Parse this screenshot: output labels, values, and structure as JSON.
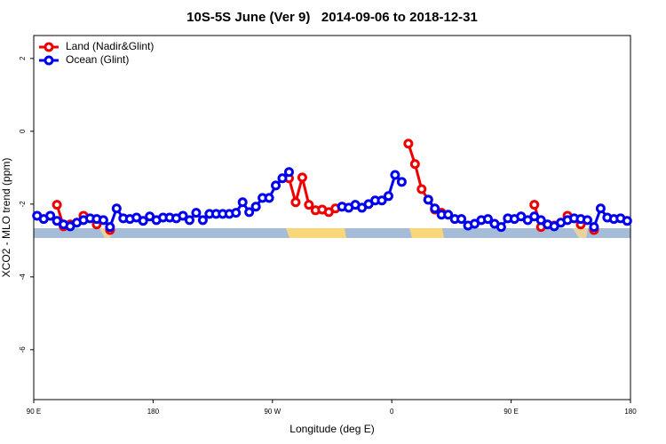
{
  "chart_data": {
    "type": "line",
    "title": "10S-5S June (Ver 9)   2014-09-06 to 2018-12-31",
    "x_label": "Longitude (deg E)",
    "y_label": "XCO2 - MLO trend (ppm)",
    "xlim": [
      90,
      540
    ],
    "ylim": [
      -7.37,
      2.63
    ],
    "xticks": [
      {
        "value": 90,
        "label": "90 E"
      },
      180,
      {
        "value": 270,
        "label": "90 W"
      },
      {
        "value": 360,
        "label": "0"
      },
      {
        "value": 450,
        "label": "90 E"
      },
      {
        "value": 540,
        "label": "180"
      }
    ],
    "yticks": [
      2,
      0,
      -2,
      -4,
      -6
    ],
    "legend": "top-left",
    "x": [
      92.5,
      97.5,
      102.5,
      107.5,
      112.5,
      117.5,
      122.5,
      127.5,
      132.5,
      137.5,
      142.5,
      147.5,
      152.5,
      157.5,
      162.5,
      167.5,
      172.5,
      177.5,
      182.5,
      187.5,
      192.5,
      197.5,
      202.5,
      207.5,
      212.5,
      217.5,
      222.5,
      227.5,
      232.5,
      237.5,
      242.5,
      247.5,
      252.5,
      257.5,
      262.5,
      267.5,
      272.5,
      277.5,
      282.5,
      287.5,
      292.5,
      297.5,
      302.5,
      307.5,
      312.5,
      317.5,
      322.5,
      327.5,
      332.5,
      337.5,
      342.5,
      347.5,
      352.5,
      357.5,
      362.5,
      367.5,
      372.5,
      377.5,
      382.5,
      387.5,
      392.5,
      397.5,
      402.5,
      407.5,
      412.5,
      417.5,
      422.5,
      427.5,
      432.5,
      437.5,
      442.5,
      447.5,
      452.5,
      457.5,
      462.5,
      467.5,
      472.5,
      477.5,
      482.5,
      487.5,
      492.5,
      497.5,
      502.5,
      507.5,
      512.5,
      517.5,
      522.5,
      527.5,
      532.5,
      537.5
    ],
    "series": [
      {
        "name": "Land (Nadir&Glint)",
        "color": "#ee0000",
        "values": [
          null,
          null,
          null,
          -2.02,
          -2.61,
          -2.56,
          null,
          -2.32,
          null,
          -2.56,
          null,
          -2.71,
          null,
          null,
          null,
          null,
          null,
          null,
          null,
          null,
          null,
          null,
          null,
          null,
          null,
          null,
          null,
          null,
          null,
          null,
          null,
          null,
          null,
          null,
          null,
          null,
          null,
          null,
          -1.29,
          -1.95,
          -1.27,
          -2.02,
          -2.17,
          -2.15,
          -2.22,
          -2.12,
          -2.07,
          null,
          null,
          null,
          null,
          null,
          null,
          null,
          null,
          null,
          -0.34,
          -0.9,
          -1.59,
          -1.88,
          -2.15,
          -2.24,
          null,
          null,
          null,
          null,
          null,
          null,
          null,
          null,
          null,
          null,
          null,
          null,
          null,
          -2.02,
          -2.63,
          null,
          -2.59,
          null,
          -2.32,
          null,
          -2.56,
          null,
          -2.71,
          null,
          null,
          null,
          null,
          null
        ]
      },
      {
        "name": "Ocean (Glint)",
        "color": "#0000ee",
        "values": [
          -2.32,
          -2.41,
          -2.32,
          -2.46,
          -2.56,
          -2.61,
          -2.51,
          -2.44,
          -2.39,
          -2.41,
          -2.44,
          -2.63,
          -2.12,
          -2.39,
          -2.41,
          -2.37,
          -2.46,
          -2.34,
          -2.44,
          -2.37,
          -2.37,
          -2.39,
          -2.32,
          -2.44,
          -2.24,
          -2.44,
          -2.27,
          -2.27,
          -2.27,
          -2.27,
          -2.24,
          -1.95,
          -2.22,
          -2.07,
          -1.83,
          -1.83,
          -1.49,
          -1.29,
          -1.12,
          null,
          null,
          null,
          null,
          null,
          null,
          null,
          -2.07,
          -2.1,
          -2.02,
          -2.1,
          -2.0,
          -1.9,
          -1.9,
          -1.78,
          -1.2,
          -1.39,
          null,
          null,
          null,
          -1.88,
          -2.12,
          -2.29,
          -2.29,
          -2.41,
          -2.41,
          -2.59,
          -2.54,
          -2.44,
          -2.41,
          -2.54,
          -2.63,
          -2.39,
          -2.41,
          -2.34,
          -2.44,
          -2.34,
          -2.44,
          -2.56,
          -2.61,
          -2.51,
          -2.44,
          -2.39,
          -2.41,
          -2.44,
          -2.63,
          -2.12,
          -2.37,
          -2.41,
          -2.39,
          -2.46
        ]
      }
    ]
  }
}
